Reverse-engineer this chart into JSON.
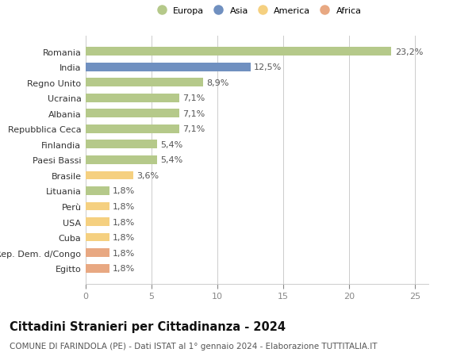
{
  "categories": [
    "Egitto",
    "Rep. Dem. d/Congo",
    "Cuba",
    "USA",
    "Perù",
    "Lituania",
    "Brasile",
    "Paesi Bassi",
    "Finlandia",
    "Repubblica Ceca",
    "Albania",
    "Ucraina",
    "Regno Unito",
    "India",
    "Romania"
  ],
  "values": [
    1.8,
    1.8,
    1.8,
    1.8,
    1.8,
    1.8,
    3.6,
    5.4,
    5.4,
    7.1,
    7.1,
    7.1,
    8.9,
    12.5,
    23.2
  ],
  "colors": [
    "#e8a882",
    "#e8a882",
    "#f5d080",
    "#f5d080",
    "#f5d080",
    "#b5c98a",
    "#f5d080",
    "#b5c98a",
    "#b5c98a",
    "#b5c98a",
    "#b5c98a",
    "#b5c98a",
    "#b5c98a",
    "#7090c0",
    "#b5c98a"
  ],
  "bar_labels": [
    "1,8%",
    "1,8%",
    "1,8%",
    "1,8%",
    "1,8%",
    "1,8%",
    "3,6%",
    "5,4%",
    "5,4%",
    "7,1%",
    "7,1%",
    "7,1%",
    "8,9%",
    "12,5%",
    "23,2%"
  ],
  "legend": {
    "Europa": "#b5c98a",
    "Asia": "#7090c0",
    "America": "#f5d080",
    "Africa": "#e8a882"
  },
  "title": "Cittadini Stranieri per Cittadinanza - 2024",
  "subtitle": "COMUNE DI FARINDOLA (PE) - Dati ISTAT al 1° gennaio 2024 - Elaborazione TUTTITALIA.IT",
  "xlim": [
    0,
    26
  ],
  "xticks": [
    0,
    5,
    10,
    15,
    20,
    25
  ],
  "background_color": "#ffffff",
  "grid_color": "#cccccc",
  "bar_height": 0.55,
  "label_fontsize": 8,
  "tick_fontsize": 8,
  "title_fontsize": 10.5,
  "subtitle_fontsize": 7.5
}
